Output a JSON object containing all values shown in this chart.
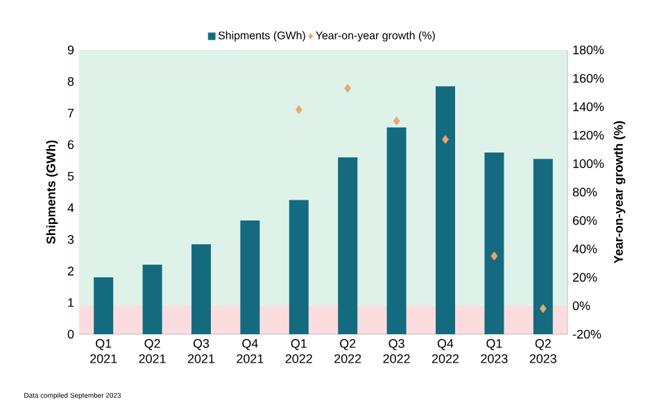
{
  "chart_data": {
    "type": "bar",
    "categories": [
      "Q1 2021",
      "Q2 2021",
      "Q3 2021",
      "Q4 2021",
      "Q1 2022",
      "Q2 2022",
      "Q3 2022",
      "Q4 2022",
      "Q1 2023",
      "Q2 2023"
    ],
    "series": [
      {
        "name": "Shipments (GWh)",
        "color": "#146b7f",
        "values": [
          1.8,
          2.2,
          2.85,
          3.6,
          4.25,
          5.6,
          6.55,
          7.85,
          5.75,
          5.55
        ]
      },
      {
        "name": "Year-on-year growth (%)",
        "type": "scatter",
        "axis": "y2",
        "marker": "diamond",
        "color": "#e8a86a",
        "values": [
          null,
          null,
          null,
          null,
          138,
          153,
          130,
          117,
          35,
          -2
        ]
      }
    ],
    "ylabel": "Shipments (GWh)",
    "y2label": "Year-on-year growth (%)",
    "ylim": [
      0,
      9
    ],
    "yticks": [
      0,
      1,
      2,
      3,
      4,
      5,
      6,
      7,
      8,
      9
    ],
    "y2lim": [
      -20,
      180
    ],
    "y2ticks": [
      {
        "value": -20,
        "label": "-20%"
      },
      {
        "value": 0,
        "label": "0%"
      },
      {
        "value": 20,
        "label": "20%"
      },
      {
        "value": 40,
        "label": "40%"
      },
      {
        "value": 60,
        "label": "60%"
      },
      {
        "value": 80,
        "label": "80%"
      },
      {
        "value": 100,
        "label": "100%"
      },
      {
        "value": 120,
        "label": "120%"
      },
      {
        "value": 140,
        "label": "140%"
      },
      {
        "value": 160,
        "label": "160%"
      },
      {
        "value": 180,
        "label": "180%"
      }
    ],
    "bands": [
      {
        "axis": "y2",
        "from": -20,
        "to": 0,
        "color": "#fbdde0"
      },
      {
        "axis": "y2",
        "from": 0,
        "to": 180,
        "color": "#dff2ea"
      }
    ],
    "legend": "top",
    "grid": false,
    "annotations": [
      "Data compiled September 2023"
    ]
  }
}
